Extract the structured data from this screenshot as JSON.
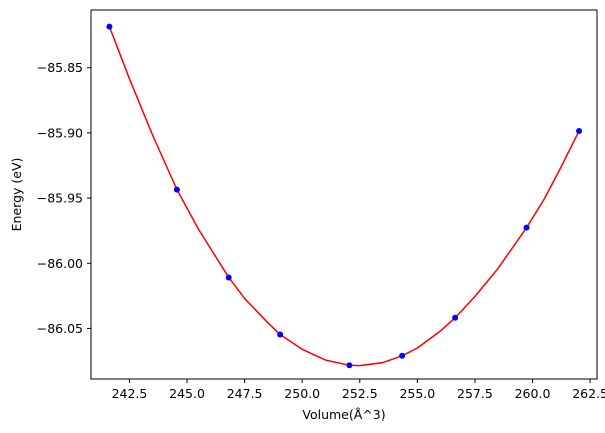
{
  "chart_data": {
    "type": "scatter",
    "title": "",
    "xlabel": "Volume(Å^3)",
    "ylabel": "Energy (eV)",
    "xlim": [
      240.83,
      262.8
    ],
    "ylim": [
      -86.0888,
      -85.8057
    ],
    "grid": false,
    "xticks": [
      242.5,
      245.0,
      247.5,
      250.0,
      252.5,
      255.0,
      257.5,
      260.0,
      262.5
    ],
    "xtick_labels": [
      "242.5",
      "245.0",
      "247.5",
      "250.0",
      "252.5",
      "255.0",
      "257.5",
      "260.0",
      "262.5"
    ],
    "yticks": [
      -85.85,
      -85.9,
      -85.95,
      -86.0,
      -86.05
    ],
    "ytick_labels": [
      "−85.85",
      "−85.90",
      "−85.95",
      "−86.00",
      "−86.05"
    ],
    "series": [
      {
        "kind": "points",
        "color": "#0000ff",
        "x": [
          241.63,
          244.56,
          246.81,
          249.04,
          252.05,
          254.34,
          256.64,
          259.74,
          262.02
        ],
        "y": [
          -85.8185,
          -85.9435,
          -86.0109,
          -86.0547,
          -86.0783,
          -86.071,
          -86.0418,
          -85.9727,
          -85.8985
        ]
      },
      {
        "kind": "fit-line",
        "color": "#ff0000",
        "x": [
          241.63,
          242.5,
          243.5,
          244.56,
          245.5,
          246.81,
          247.5,
          248.5,
          249.04,
          250.0,
          251.0,
          252.05,
          252.5,
          253.5,
          254.34,
          255.0,
          256.0,
          256.64,
          257.5,
          258.5,
          259.74,
          260.5,
          261.2,
          262.02
        ],
        "y": [
          -85.8185,
          -85.8585,
          -85.9015,
          -85.9435,
          -85.974,
          -86.0109,
          -86.027,
          -86.0455,
          -86.0547,
          -86.066,
          -86.0742,
          -86.0783,
          -86.0785,
          -86.0762,
          -86.071,
          -86.065,
          -86.052,
          -86.0418,
          -86.0255,
          -86.004,
          -85.9727,
          -85.951,
          -85.9275,
          -85.8985
        ]
      }
    ]
  }
}
